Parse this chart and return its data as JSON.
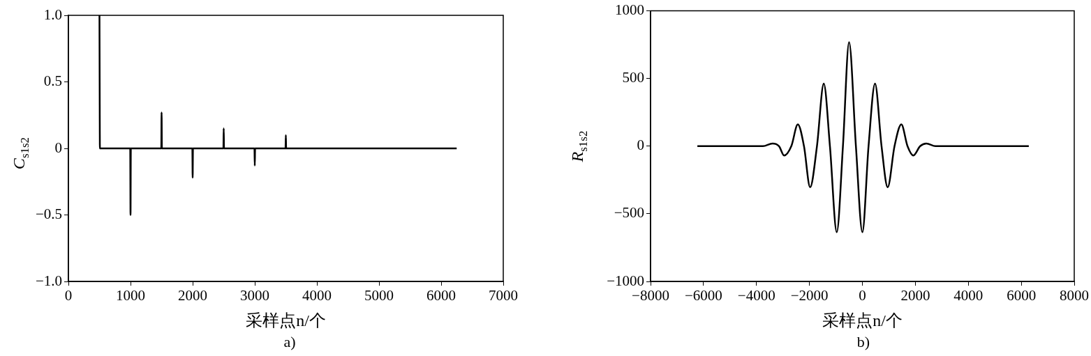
{
  "chart_data": [
    {
      "type": "line",
      "xlabel": "采样点n/个",
      "ylabel": "C$_{s1s2}$",
      "annotations": [
        "a)"
      ],
      "x": [
        500,
        503,
        507,
        995,
        1000,
        1005,
        1495,
        1500,
        1505,
        1995,
        2000,
        2005,
        2495,
        2500,
        2505,
        2995,
        3000,
        3005,
        3495,
        3500,
        3505,
        6250
      ],
      "series": [
        {
          "color": "#000000",
          "values": [
            1.0,
            0.5,
            0,
            0,
            -0.5,
            0,
            0,
            0.27,
            0,
            0,
            -0.22,
            0,
            0,
            0.15,
            0,
            0,
            -0.13,
            0,
            0,
            0.1,
            0,
            0
          ]
        }
      ],
      "xlim": [
        0,
        7000
      ],
      "xticks": [
        0,
        1000,
        2000,
        3000,
        4000,
        5000,
        6000,
        7000
      ],
      "ylim": [
        -1,
        1
      ],
      "yticks": [
        {
          "value": -1,
          "label": "−1.0"
        },
        {
          "value": -0.5,
          "label": "−0.5"
        },
        0,
        0.5,
        {
          "value": 1,
          "label": "1.0"
        }
      ],
      "grid": false,
      "legend": false,
      "marker": "none"
    },
    {
      "type": "line",
      "xlabel": "采样点n/个",
      "ylabel": "R$_{s1s2}$",
      "annotations": [
        "b)"
      ],
      "x": [
        -6232,
        -3755,
        -3394,
        -3148,
        -2955,
        -2684,
        -2439,
        -2206,
        -1974,
        -1716,
        -1458,
        -1226,
        -968,
        -735,
        -503,
        -245,
        0,
        232,
        477,
        723,
        955,
        1213,
        1471,
        1703,
        1923,
        2181,
        2413,
        2761,
        6284
      ],
      "series": [
        {
          "color": "#000000",
          "values": [
            0,
            0,
            20,
            0,
            -69,
            0,
            161,
            0,
            -304,
            0,
            462,
            0,
            -636,
            0,
            769,
            0,
            -636,
            0,
            462,
            0,
            -304,
            0,
            161,
            0,
            -69,
            0,
            20,
            0,
            0
          ]
        }
      ],
      "xlim": [
        -8000,
        8000
      ],
      "xticks": [
        {
          "value": -8000,
          "label": "−8000"
        },
        {
          "value": -6000,
          "label": "−6000"
        },
        {
          "value": -4000,
          "label": "−4000"
        },
        {
          "value": -2000,
          "label": "−2000"
        },
        0,
        2000,
        4000,
        6000,
        8000
      ],
      "ylim": [
        -1000,
        1000
      ],
      "yticks": [
        {
          "value": -1000,
          "label": "−1000"
        },
        {
          "value": -500,
          "label": "−500"
        },
        0,
        500,
        1000
      ],
      "grid": false,
      "legend": false,
      "marker": "none"
    }
  ]
}
